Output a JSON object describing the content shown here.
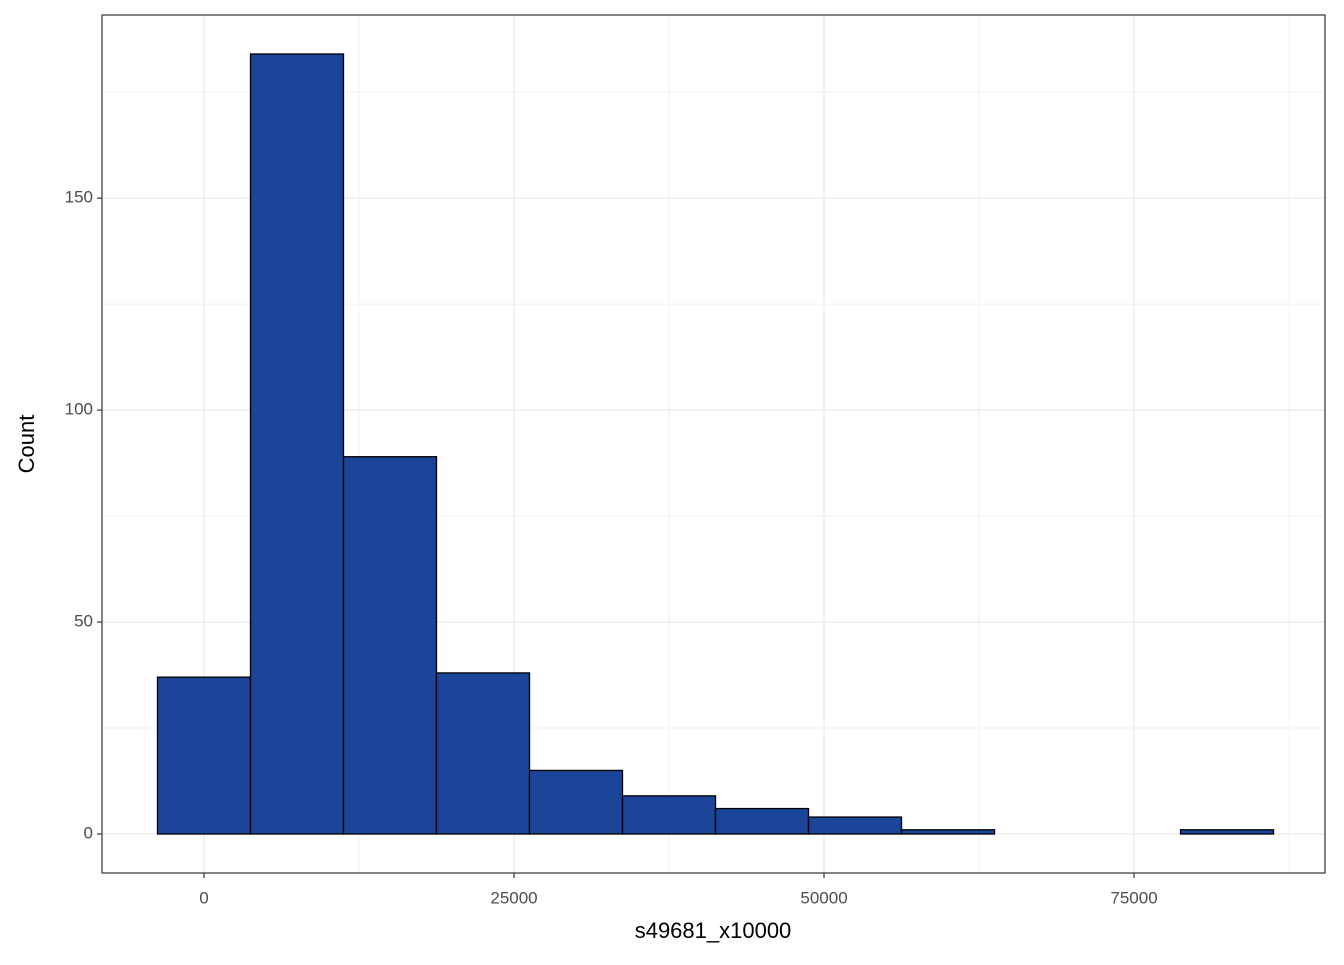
{
  "chart_data": {
    "type": "histogram",
    "x_label": "s49681_x10000",
    "y_label": "Count",
    "bins": [
      -3750,
      3750,
      11250,
      18750,
      26250,
      33750,
      41250,
      48750,
      56250,
      63750,
      71250,
      78750,
      86250
    ],
    "values": [
      37,
      184,
      89,
      38,
      15,
      9,
      6,
      4,
      1,
      0,
      0,
      1
    ],
    "color": "#1a4599",
    "edge_color": "#000000",
    "xlim": [
      -8225,
      90400
    ],
    "ylim": [
      -9.2,
      193.2
    ],
    "xticks": [
      0,
      25000,
      50000,
      75000
    ],
    "yticks": [
      0,
      50,
      100,
      150
    ],
    "grid": true
  }
}
